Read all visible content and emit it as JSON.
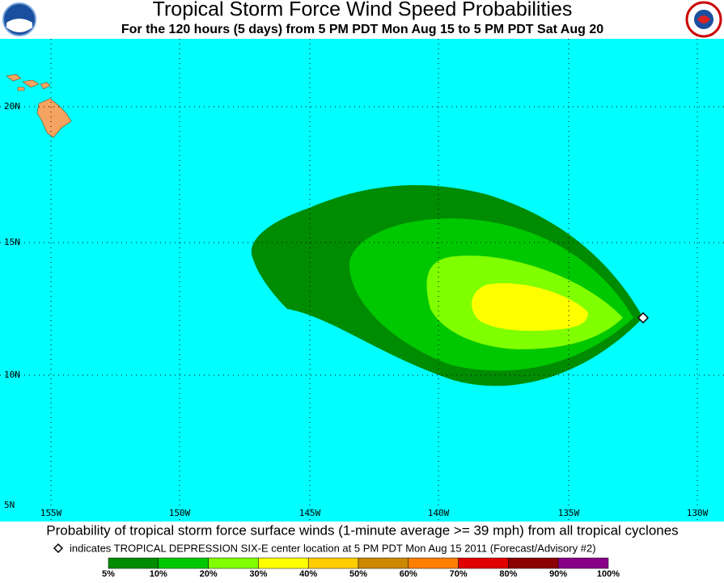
{
  "header": {
    "title": "Tropical Storm Force Wind Speed Probabilities",
    "subtitle": "For the 120 hours (5 days) from 5 PM PDT Mon Aug 15 to 5 PM PDT Sat Aug 20"
  },
  "map": {
    "lat_labels": [
      "20N",
      "15N",
      "10N",
      "5N"
    ],
    "lon_labels": [
      "155W",
      "150W",
      "145W",
      "140W",
      "135W",
      "130W"
    ]
  },
  "footer": {
    "caption": "Probability of tropical storm force surface winds (1-minute average >= 39 mph) from all tropical cyclones",
    "marker_note": "indicates TROPICAL DEPRESSION SIX-E center location at 5 PM PDT Mon Aug 15 2011 (Forecast/Advisory #2)"
  },
  "legend": {
    "labels": [
      "5%",
      "10%",
      "20%",
      "30%",
      "40%",
      "50%",
      "60%",
      "70%",
      "80%",
      "90%",
      "100%"
    ],
    "colors": [
      "#008c00",
      "#00c800",
      "#80ff00",
      "#ffff00",
      "#ffcc00",
      "#cc8800",
      "#ff8000",
      "#e00000",
      "#8b0000",
      "#880088"
    ]
  }
}
